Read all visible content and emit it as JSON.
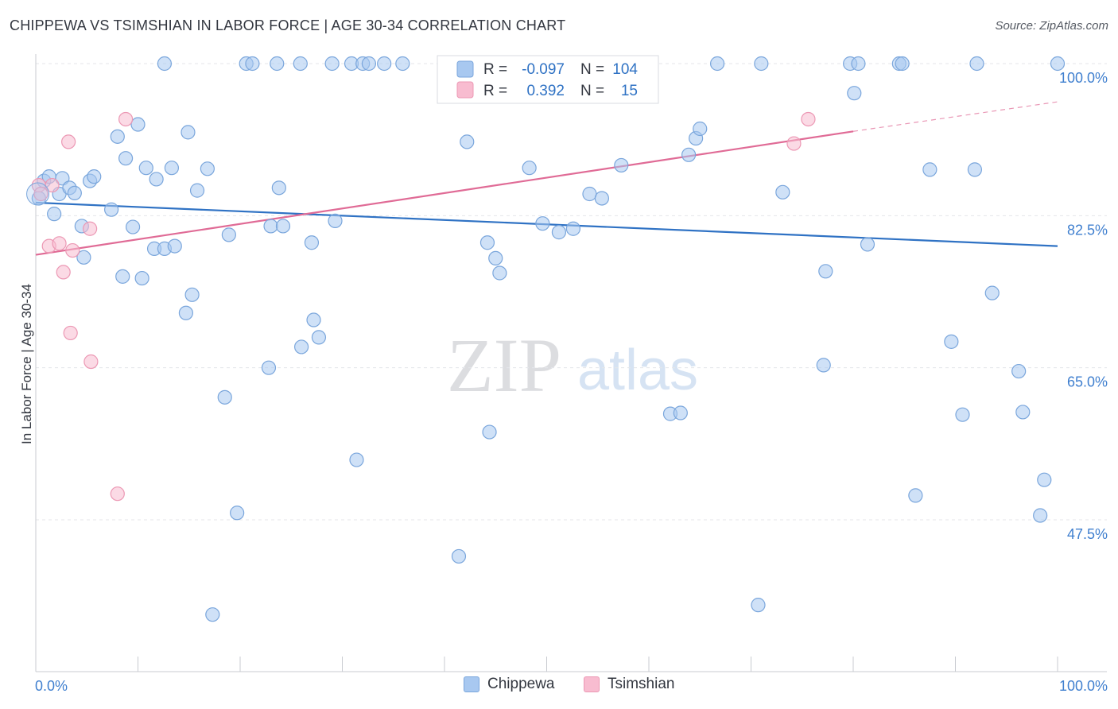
{
  "title": "CHIPPEWA VS TSIMSHIAN IN LABOR FORCE | AGE 30-34 CORRELATION CHART",
  "source": "Source: ZipAtlas.com",
  "watermark": {
    "zip": "ZIP",
    "atlas": "atlas"
  },
  "chart_data": {
    "type": "scatter",
    "ylabel": "In Labor Force | Age 30-34",
    "xlim": [
      0,
      100
    ],
    "ylim": [
      30,
      100
    ],
    "x_tick_labels": [
      "0.0%",
      "100.0%"
    ],
    "y_ticks": [
      {
        "value": 47.5,
        "label": "47.5%"
      },
      {
        "value": 65.0,
        "label": "65.0%"
      },
      {
        "value": 82.5,
        "label": "82.5%"
      },
      {
        "value": 100.0,
        "label": "100.0%"
      }
    ],
    "legend_top": [
      {
        "r_label": "R =",
        "r_value": "-0.097",
        "n_label": "N =",
        "n_value": "104"
      },
      {
        "r_label": "R =",
        "r_value": "0.392",
        "n_label": "N =",
        "n_value": "15"
      }
    ],
    "series": [
      {
        "name": "Chippewa",
        "color": "#a8c8f0",
        "stroke": "#7aa6dc",
        "trend_color": "#2f72c4",
        "trend": [
          [
            0,
            84.0
          ],
          [
            100,
            79.0
          ]
        ],
        "trend_dashed": null,
        "points": [
          [
            0.3,
            84.5
          ],
          [
            0.8,
            86.5
          ],
          [
            1.3,
            87.0
          ],
          [
            1.8,
            82.7
          ],
          [
            2.3,
            85.0
          ],
          [
            2.6,
            86.8
          ],
          [
            3.3,
            85.7
          ],
          [
            3.8,
            85.1
          ],
          [
            4.5,
            81.3
          ],
          [
            4.7,
            77.7
          ],
          [
            5.3,
            86.5
          ],
          [
            5.7,
            87.0
          ],
          [
            7.4,
            83.2
          ],
          [
            8.0,
            91.6
          ],
          [
            8.5,
            75.5
          ],
          [
            8.8,
            89.1
          ],
          [
            9.5,
            81.2
          ],
          [
            10.0,
            93.0
          ],
          [
            10.4,
            75.3
          ],
          [
            10.8,
            88.0
          ],
          [
            11.6,
            78.7
          ],
          [
            11.8,
            86.7
          ],
          [
            12.6,
            78.7
          ],
          [
            13.3,
            88.0
          ],
          [
            13.6,
            79.0
          ],
          [
            14.7,
            71.3
          ],
          [
            14.9,
            92.1
          ],
          [
            15.3,
            73.4
          ],
          [
            15.8,
            85.4
          ],
          [
            16.8,
            87.9
          ],
          [
            17.3,
            36.6
          ],
          [
            18.5,
            61.6
          ],
          [
            18.9,
            80.3
          ],
          [
            19.7,
            48.3
          ],
          [
            22.8,
            65.0
          ],
          [
            23.0,
            81.3
          ],
          [
            23.8,
            85.7
          ],
          [
            24.2,
            81.3
          ],
          [
            26.0,
            67.4
          ],
          [
            27.0,
            79.4
          ],
          [
            27.2,
            70.5
          ],
          [
            27.7,
            68.5
          ],
          [
            29.3,
            81.9
          ],
          [
            31.4,
            54.4
          ],
          [
            41.4,
            43.3
          ],
          [
            42.2,
            91.0
          ],
          [
            44.2,
            79.4
          ],
          [
            44.4,
            57.6
          ],
          [
            45.0,
            77.6
          ],
          [
            45.4,
            75.9
          ],
          [
            48.3,
            88.0
          ],
          [
            49.6,
            81.6
          ],
          [
            51.2,
            80.6
          ],
          [
            52.6,
            81.0
          ],
          [
            54.2,
            85.0
          ],
          [
            55.4,
            84.5
          ],
          [
            57.3,
            88.3
          ],
          [
            62.1,
            59.7
          ],
          [
            63.1,
            59.8
          ],
          [
            63.9,
            89.5
          ],
          [
            64.6,
            91.4
          ],
          [
            65.0,
            92.5
          ],
          [
            70.7,
            37.7
          ],
          [
            73.1,
            85.2
          ],
          [
            77.1,
            65.3
          ],
          [
            77.3,
            76.1
          ],
          [
            80.1,
            96.6
          ],
          [
            81.4,
            79.2
          ],
          [
            86.1,
            50.3
          ],
          [
            87.5,
            87.8
          ],
          [
            89.6,
            68.0
          ],
          [
            90.7,
            59.6
          ],
          [
            91.9,
            87.8
          ],
          [
            93.6,
            73.6
          ],
          [
            96.2,
            64.6
          ],
          [
            96.6,
            59.9
          ],
          [
            98.3,
            48.0
          ],
          [
            98.7,
            52.1
          ],
          [
            12.6,
            100.0
          ],
          [
            20.6,
            100.0
          ],
          [
            21.2,
            100.0
          ],
          [
            23.6,
            100.0
          ],
          [
            25.9,
            100.0
          ],
          [
            29.0,
            100.0
          ],
          [
            30.9,
            100.0
          ],
          [
            32.0,
            100.0
          ],
          [
            32.6,
            100.0
          ],
          [
            34.1,
            100.0
          ],
          [
            35.9,
            100.0
          ],
          [
            49.3,
            100.0
          ],
          [
            59.2,
            100.0
          ],
          [
            66.7,
            100.0
          ],
          [
            71.0,
            100.0
          ],
          [
            79.7,
            100.0
          ],
          [
            80.5,
            100.0
          ],
          [
            84.5,
            100.0
          ],
          [
            84.8,
            100.0
          ],
          [
            92.1,
            100.0
          ],
          [
            100.0,
            100.0
          ]
        ]
      },
      {
        "name": "Tsimshian",
        "color": "#f8bcd0",
        "stroke": "#ec98b4",
        "trend_color": "#e06b96",
        "trend": [
          [
            0,
            78.0
          ],
          [
            80,
            92.2
          ]
        ],
        "trend_dashed": [
          [
            80,
            92.2
          ],
          [
            100,
            95.6
          ]
        ],
        "points": [
          [
            0.3,
            86.0
          ],
          [
            0.5,
            85.0
          ],
          [
            1.3,
            79.0
          ],
          [
            1.6,
            86.0
          ],
          [
            2.3,
            79.3
          ],
          [
            2.7,
            76.0
          ],
          [
            3.2,
            91.0
          ],
          [
            3.4,
            69.0
          ],
          [
            3.6,
            78.5
          ],
          [
            5.3,
            81.0
          ],
          [
            5.4,
            65.7
          ],
          [
            8.0,
            50.5
          ],
          [
            8.8,
            93.6
          ],
          [
            74.2,
            90.8
          ],
          [
            75.6,
            93.6
          ]
        ]
      }
    ]
  }
}
